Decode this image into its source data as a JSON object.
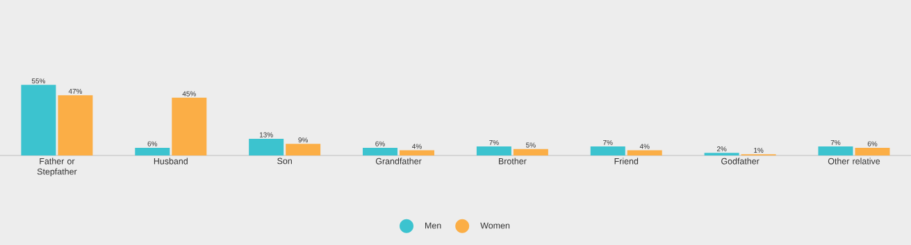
{
  "chart_data": {
    "type": "bar",
    "categories": [
      "Father or Stepfather",
      "Husband",
      "Son",
      "Grandfather",
      "Brother",
      "Friend",
      "Godfather",
      "Other relative"
    ],
    "series": [
      {
        "name": "Men",
        "color": "#3cc3cf",
        "values": [
          55,
          6,
          13,
          6,
          7,
          7,
          2,
          7
        ],
        "value_labels": [
          "55%",
          "6%",
          "13%",
          "6%",
          "7%",
          "7%",
          "2%",
          "7%"
        ]
      },
      {
        "name": "Women",
        "color": "#fbae46",
        "values": [
          47,
          45,
          9,
          4,
          5,
          4,
          1,
          6
        ],
        "value_labels": [
          "47%",
          "45%",
          "9%",
          "4%",
          "5%",
          "4%",
          "1%",
          "6%"
        ]
      }
    ],
    "legend": "bottom",
    "grid": false
  }
}
